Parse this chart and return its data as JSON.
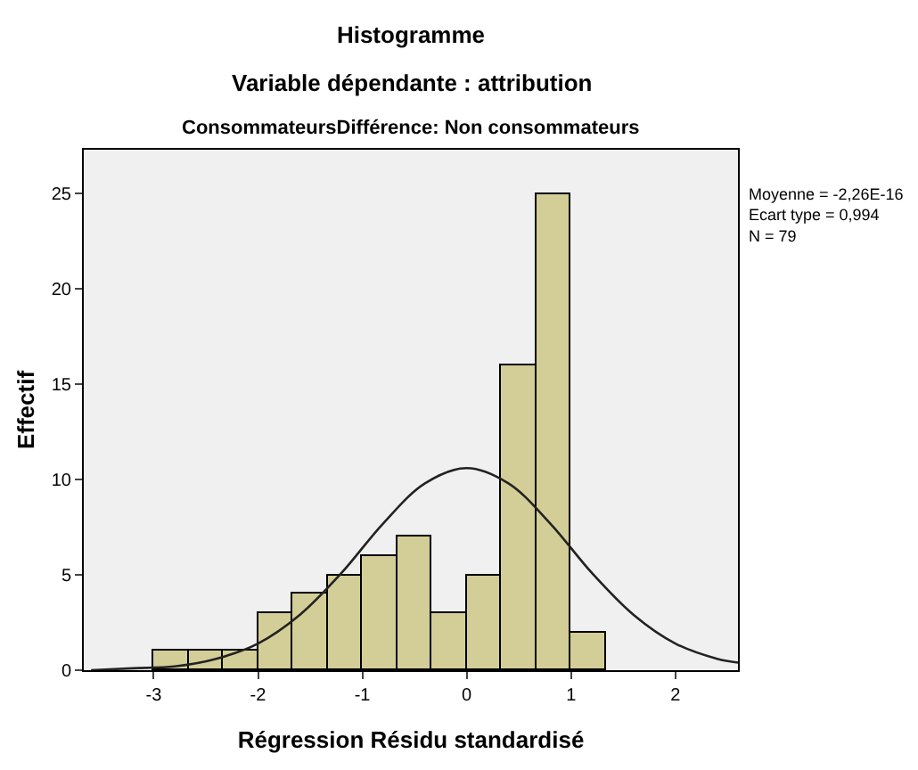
{
  "chart_data": {
    "type": "histogram",
    "title": "Histogramme",
    "subtitle": "Variable dépendante : attribution",
    "annotations": [
      "ConsommateursDifférence: Non consommateurs",
      "Moyenne = -2,26E-16",
      "Ecart type = 0,994",
      "N = 79"
    ],
    "xlabel": "Régression Résidu standardisé",
    "ylabel": "Effectif",
    "bins": [
      -3,
      -2.667,
      -2.333,
      -2,
      -1.667,
      -1.333,
      -1,
      -0.667,
      -0.333,
      0,
      0.333,
      0.667,
      1,
      1.333
    ],
    "values": [
      1,
      1,
      1,
      3,
      4,
      5,
      6,
      7,
      3,
      5,
      16,
      25,
      2
    ],
    "color": "#d3ce97",
    "series": [
      {
        "type": "line",
        "color": "#222222",
        "x": [
          -3.6,
          -3.2,
          -2.8,
          -2.4,
          -2.0,
          -1.6,
          -1.2,
          -0.8,
          -0.4,
          0,
          0.4,
          0.8,
          1.2,
          1.6,
          2.0,
          2.4,
          2.6
        ],
        "values": [
          0,
          0.1,
          0.2,
          0.6,
          1.4,
          2.9,
          5.1,
          7.7,
          9.8,
          10.6,
          9.8,
          7.7,
          5.1,
          2.9,
          1.4,
          0.6,
          0.4
        ]
      }
    ],
    "xlim": [
      -3.67,
      2.6
    ],
    "ylim": [
      0,
      27.3
    ],
    "xticks": [
      -3,
      -2,
      -1,
      0,
      1,
      2
    ],
    "yticks": [
      0,
      5,
      10,
      15,
      20,
      25
    ],
    "grid": false
  }
}
